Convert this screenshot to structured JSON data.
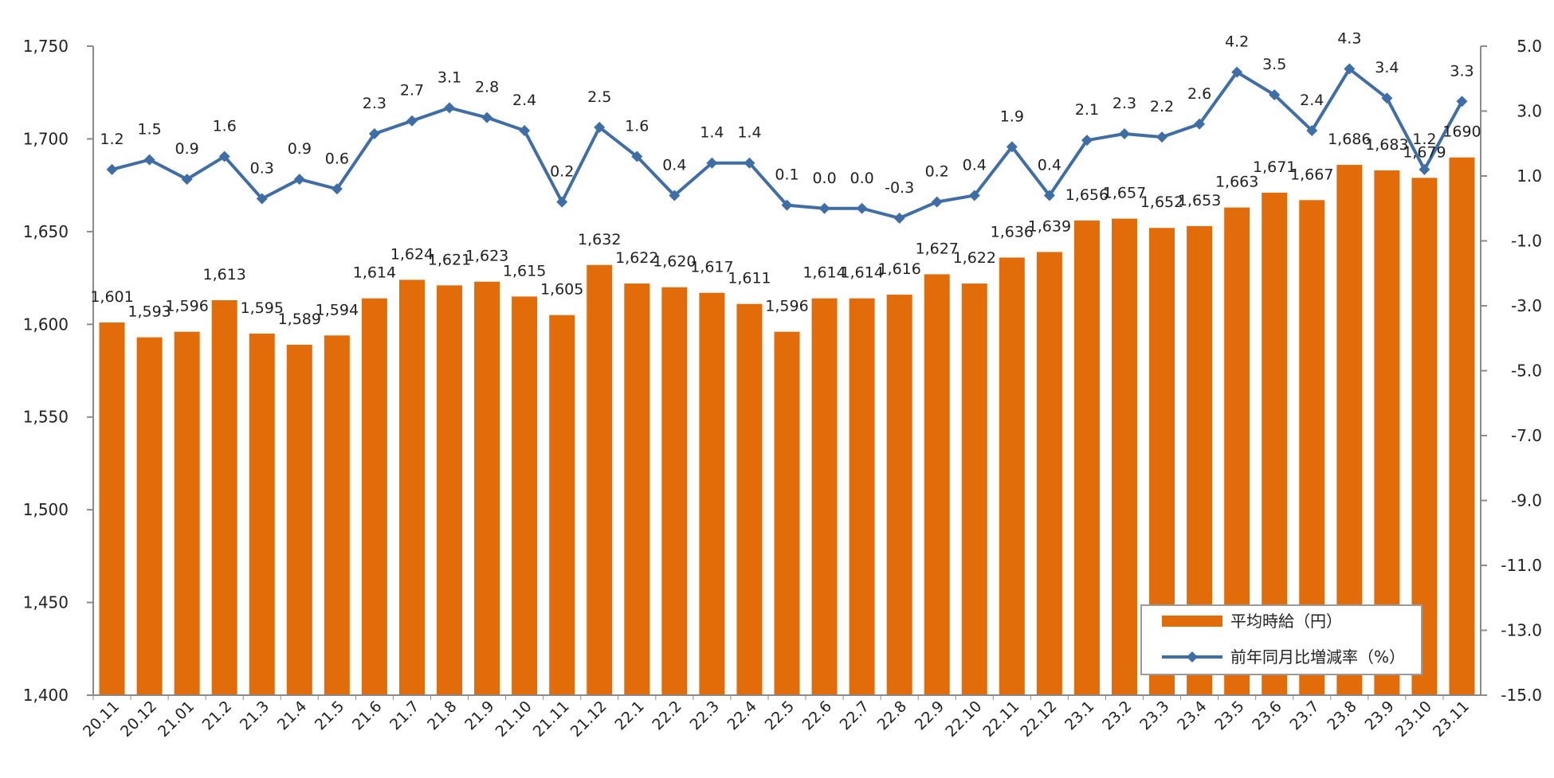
{
  "chart_data": {
    "type": "bar+line",
    "categories": [
      "20.11",
      "20.12",
      "21.01",
      "21.2",
      "21.3",
      "21.4",
      "21.5",
      "21.6",
      "21.7",
      "21.8",
      "21.9",
      "21.10",
      "21.11",
      "21.12",
      "22.1",
      "22.2",
      "22.3",
      "22.4",
      "22.5",
      "22.6",
      "22.7",
      "22.8",
      "22.9",
      "22.10",
      "22.11",
      "22.12",
      "23.1",
      "23.2",
      "23.3",
      "23.4",
      "23.5",
      "23.6",
      "23.7",
      "23.8",
      "23.9",
      "23.10",
      "23.11"
    ],
    "series": [
      {
        "name": "平均時給（円）",
        "type": "bar",
        "axis": "left",
        "color": "#E36C0A",
        "values": [
          1601,
          1593,
          1596,
          1613,
          1595,
          1589,
          1594,
          1614,
          1624,
          1621,
          1623,
          1615,
          1605,
          1632,
          1622,
          1620,
          1617,
          1611,
          1596,
          1614,
          1614,
          1616,
          1627,
          1622,
          1636,
          1639,
          1656,
          1657,
          1652,
          1653,
          1663,
          1671,
          1667,
          1686,
          1683,
          1679,
          1690
        ],
        "labels": [
          "1,601",
          "1,593",
          "1,596",
          "1,613",
          "1,595",
          "1,589",
          "1,594",
          "1,614",
          "1,624",
          "1,621",
          "1,623",
          "1,615",
          "1,605",
          "1,632",
          "1,622",
          "1,620",
          "1,617",
          "1,611",
          "1,596",
          "1,614",
          "1,614",
          "1,616",
          "1,627",
          "1,622",
          "1,636",
          "1,639",
          "1,656",
          "1,657",
          "1,652",
          "1,653",
          "1,663",
          "1,671",
          "1,667",
          "1,686",
          "1,683",
          "1,679",
          "1690"
        ]
      },
      {
        "name": "前年同月比増減率（%）",
        "type": "line",
        "axis": "right",
        "color": "#3F6EA6",
        "values": [
          1.2,
          1.5,
          0.9,
          1.6,
          0.3,
          0.9,
          0.6,
          2.3,
          2.7,
          3.1,
          2.8,
          2.4,
          0.2,
          2.5,
          1.6,
          0.4,
          1.4,
          1.4,
          0.1,
          0.0,
          0.0,
          -0.3,
          0.2,
          0.4,
          1.9,
          0.4,
          2.1,
          2.3,
          2.2,
          2.6,
          4.2,
          3.5,
          2.4,
          4.3,
          3.4,
          1.2,
          3.3
        ],
        "labels": [
          "1.2",
          "1.5",
          "0.9",
          "1.6",
          "0.3",
          "0.9",
          "0.6",
          "2.3",
          "2.7",
          "3.1",
          "2.8",
          "2.4",
          "0.2",
          "2.5",
          "1.6",
          "0.4",
          "1.4",
          "1.4",
          "0.1",
          "0.0",
          "0.0",
          "-0.3",
          "0.2",
          "0.4",
          "1.9",
          "0.4",
          "2.1",
          "2.3",
          "2.2",
          "2.6",
          "4.2",
          "3.5",
          "2.4",
          "4.3",
          "3.4",
          "1.2",
          "3.3"
        ],
        "negative_label_color": "#E00000"
      }
    ],
    "y_left": {
      "min": 1400,
      "max": 1750,
      "ticks": [
        "1,400",
        "1,450",
        "1,500",
        "1,550",
        "1,600",
        "1,650",
        "1,700",
        "1,750"
      ]
    },
    "y_right": {
      "min": -15.0,
      "max": 5.0,
      "ticks": [
        "-15.0",
        "-13.0",
        "-11.0",
        "-9.0",
        "-7.0",
        "-5.0",
        "-3.0",
        "-1.0",
        "1.0",
        "3.0",
        "5.0"
      ]
    },
    "legend": {
      "position": "bottom-right",
      "items": [
        {
          "label": "平均時給（円）",
          "kind": "bar"
        },
        {
          "label": "前年同月比増減率（%）",
          "kind": "line"
        }
      ]
    },
    "grid": false,
    "title": ""
  }
}
